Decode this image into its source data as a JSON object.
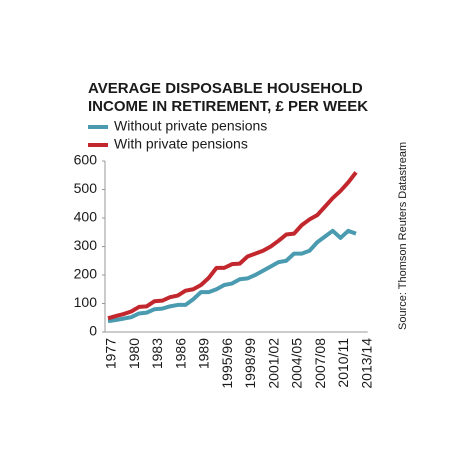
{
  "chart_data": {
    "type": "line",
    "title": [
      "AVERAGE DISPOSABLE HOUSEHOLD",
      "INCOME IN RETIREMENT, £ PER WEEK"
    ],
    "source": "Source: Thomson Reuters Datastream",
    "categories": [
      "1977",
      null,
      null,
      "1980",
      null,
      null,
      "1983",
      null,
      null,
      "1986",
      null,
      null,
      "1989",
      null,
      null,
      "1995/96",
      null,
      null,
      "1998/99",
      null,
      null,
      "2001/02",
      null,
      null,
      "2004/05",
      null,
      null,
      "2007/08",
      null,
      null,
      "2010/11",
      null,
      null,
      "2013/14"
    ],
    "series": [
      {
        "name": "Without private pensions",
        "color": "#4a9bb0",
        "values": [
          38,
          42,
          47,
          52,
          65,
          68,
          80,
          82,
          90,
          95,
          95,
          115,
          140,
          140,
          150,
          165,
          170,
          185,
          188,
          200,
          215,
          230,
          245,
          250,
          275,
          275,
          285,
          315,
          335,
          355,
          330,
          355,
          345,
          null
        ]
      },
      {
        "name": "With private pensions",
        "color": "#c1272d",
        "values": [
          48,
          56,
          63,
          72,
          88,
          90,
          108,
          110,
          122,
          128,
          145,
          150,
          165,
          190,
          225,
          225,
          238,
          240,
          265,
          275,
          285,
          300,
          320,
          342,
          345,
          375,
          395,
          410,
          440,
          470,
          495,
          525,
          560,
          null
        ]
      }
    ],
    "ylim": [
      0,
      600
    ],
    "yticks": [
      0,
      100,
      200,
      300,
      400,
      500,
      600
    ],
    "grid": false
  }
}
